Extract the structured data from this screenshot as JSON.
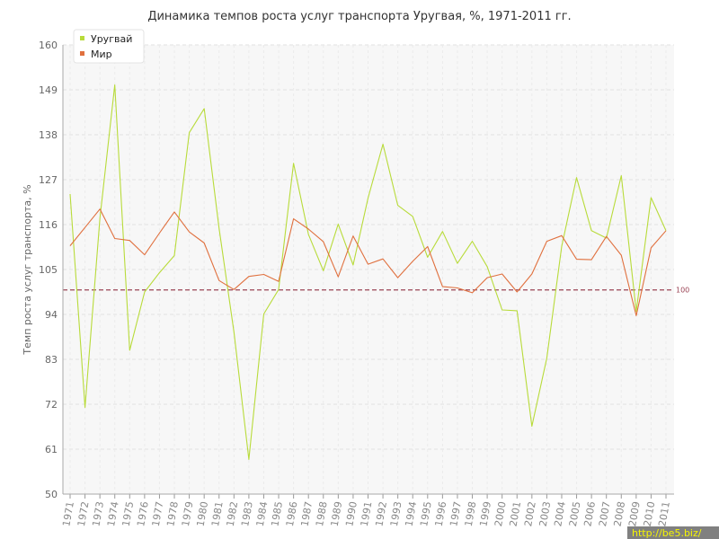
{
  "chart_data": {
    "type": "line",
    "title": "Динамика темпов роста услуг транспорта Уругвая, %, 1971-2011 гг.",
    "ylabel": "Темп роста услуг транспорта, %",
    "xlabel": "",
    "ylim": [
      50,
      160
    ],
    "yticks": [
      50,
      61,
      72,
      83,
      94,
      105,
      116,
      127,
      138,
      149,
      160
    ],
    "grid": true,
    "legend_position": "top-left",
    "reference_line": {
      "value": 100,
      "label": "100",
      "color": "#9b4455"
    },
    "categories": [
      "1971",
      "1972",
      "1973",
      "1974",
      "1975",
      "1976",
      "1977",
      "1978",
      "1979",
      "1980",
      "1981",
      "1982",
      "1983",
      "1984",
      "1985",
      "1986",
      "1987",
      "1988",
      "1989",
      "1990",
      "1991",
      "1992",
      "1993",
      "1994",
      "1995",
      "1996",
      "1997",
      "1998",
      "1999",
      "2000",
      "2001",
      "2002",
      "2003",
      "2004",
      "2005",
      "2006",
      "2007",
      "2008",
      "2009",
      "2010",
      "2011"
    ],
    "series": [
      {
        "name": "Уругвай",
        "color": "#b8db3a",
        "values": [
          123.5,
          71.2,
          117.6,
          150.2,
          85.2,
          99.5,
          104.2,
          108.4,
          138.5,
          144.4,
          115.0,
          89.7,
          58.5,
          94.1,
          100.1,
          131.0,
          113.6,
          104.7,
          116.1,
          106.1,
          122.5,
          135.7,
          120.7,
          118.0,
          108.0,
          114.3,
          106.5,
          111.9,
          105.7,
          95.1,
          94.9,
          66.6,
          83.3,
          110.7,
          127.5,
          114.5,
          112.7,
          128.0,
          94.7,
          122.6,
          114.5
        ]
      },
      {
        "name": "Мир",
        "color": "#e0703e",
        "values": [
          110.8,
          115.3,
          119.8,
          112.6,
          112.1,
          108.6,
          113.9,
          119.1,
          114.2,
          111.5,
          102.3,
          100.1,
          103.3,
          103.8,
          102.1,
          117.4,
          114.9,
          111.8,
          103.2,
          113.2,
          106.3,
          107.6,
          103.0,
          107.0,
          110.6,
          100.8,
          100.5,
          99.3,
          103.0,
          103.9,
          99.5,
          103.9,
          111.9,
          113.3,
          107.5,
          107.4,
          113.1,
          108.5,
          93.7,
          110.3,
          114.5
        ]
      }
    ]
  },
  "watermark": "http://be5.biz/"
}
